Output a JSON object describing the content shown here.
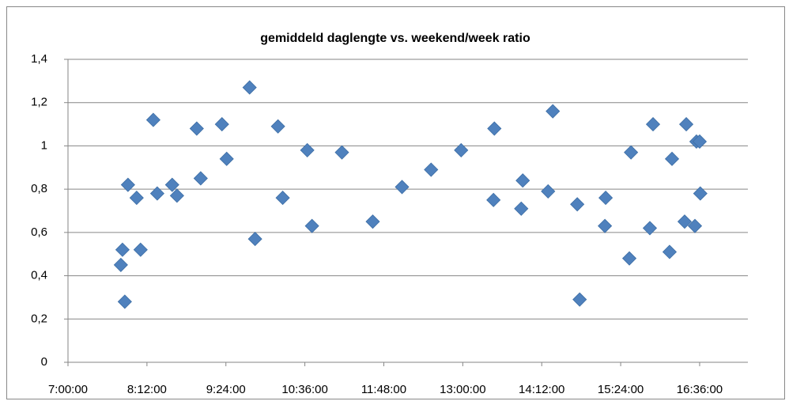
{
  "chart_data": {
    "type": "scatter",
    "title": "gemiddeld daglengte vs. weekend/week ratio",
    "color": "#4f81bd",
    "grid": true,
    "x": [
      468.2,
      469.7,
      471.8,
      474.7,
      482.6,
      486.2,
      497.8,
      501.4,
      515.0,
      519.4,
      537.4,
      541.0,
      560.4,
      564.7,
      585.6,
      590.6,
      611.5,
      615.8,
      638.2,
      642.5,
      669.8,
      697.9,
      724.6,
      751.1,
      778.5,
      808.0,
      808.8,
      833.3,
      834.7,
      857.8,
      862.1,
      884.4,
      886.6,
      909.6,
      910.3,
      931.9,
      933.4,
      950.6,
      953.5,
      968.6,
      970.8,
      982.3,
      983.8,
      991.7,
      993.1,
      996.0,
      996.6
    ],
    "values": [
      0.45,
      0.52,
      0.28,
      0.82,
      0.76,
      0.52,
      1.12,
      0.78,
      0.82,
      0.77,
      1.08,
      0.85,
      1.1,
      0.94,
      1.27,
      0.57,
      1.09,
      0.76,
      0.98,
      0.63,
      0.97,
      0.65,
      0.81,
      0.89,
      0.98,
      0.75,
      1.08,
      0.71,
      0.84,
      0.79,
      1.16,
      0.73,
      0.29,
      0.63,
      0.76,
      0.48,
      0.97,
      0.62,
      1.1,
      0.51,
      0.94,
      0.65,
      1.1,
      0.63,
      1.02,
      1.02,
      0.78
    ],
    "xlim": [
      420,
      1040
    ],
    "xticks": [
      {
        "value": 420,
        "label": "7:00:00"
      },
      {
        "value": 492,
        "label": "8:12:00"
      },
      {
        "value": 564,
        "label": "9:24:00"
      },
      {
        "value": 636,
        "label": "10:36:00"
      },
      {
        "value": 708,
        "label": "11:48:00"
      },
      {
        "value": 780,
        "label": "13:00:00"
      },
      {
        "value": 852,
        "label": "14:12:00"
      },
      {
        "value": 924,
        "label": "15:24:00"
      },
      {
        "value": 996,
        "label": "16:36:00"
      }
    ],
    "ylim": [
      0,
      1.4
    ],
    "yticks": [
      0,
      {
        "value": 0.2,
        "label": "0,2"
      },
      {
        "value": 0.4,
        "label": "0,4"
      },
      {
        "value": 0.6,
        "label": "0,6"
      },
      {
        "value": 0.8,
        "label": "0,8"
      },
      1,
      {
        "value": 1.2,
        "label": "1,2"
      },
      {
        "value": 1.4,
        "label": "1,4"
      }
    ]
  }
}
